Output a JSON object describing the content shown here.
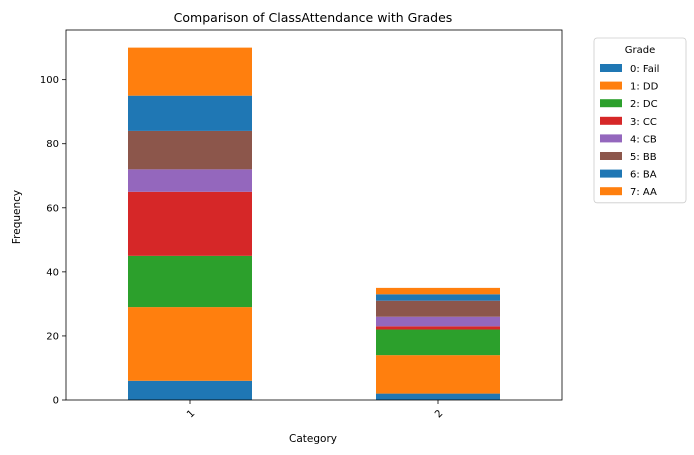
{
  "chart_data": {
    "type": "bar",
    "stacked": true,
    "title": "Comparison of ClassAttendance with Grades",
    "xlabel": "Category",
    "ylabel": "Frequency",
    "categories": [
      "1",
      "2"
    ],
    "ylim": [
      0,
      115.5
    ],
    "yticks": [
      0,
      20,
      40,
      60,
      80,
      100
    ],
    "legend": {
      "title": "Grade",
      "placement": "outside-top-right"
    },
    "series": [
      {
        "name": "0: Fail",
        "color": "#1f77b4",
        "values": [
          6,
          2
        ]
      },
      {
        "name": "1: DD",
        "color": "#ff7f0e",
        "values": [
          23,
          12
        ]
      },
      {
        "name": "2: DC",
        "color": "#2ca02c",
        "values": [
          16,
          8
        ]
      },
      {
        "name": "3: CC",
        "color": "#d62728",
        "values": [
          20,
          1
        ]
      },
      {
        "name": "4: CB",
        "color": "#9467bd",
        "values": [
          7,
          3
        ]
      },
      {
        "name": "5: BB",
        "color": "#8c564b",
        "values": [
          12,
          5
        ]
      },
      {
        "name": "6: BA",
        "color": "#1f77b4",
        "values": [
          11,
          2
        ]
      },
      {
        "name": "7: AA",
        "color": "#ff7f0e",
        "values": [
          15,
          2
        ]
      }
    ]
  }
}
